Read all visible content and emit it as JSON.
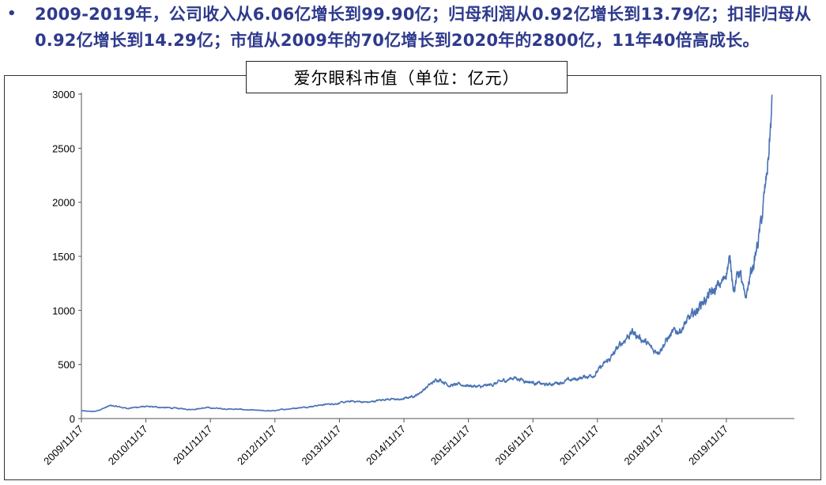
{
  "bullet": {
    "symbol": "•",
    "text": "2009-2019年，公司收入从6.06亿增长到99.90亿；归母利润从0.92亿增长到13.79亿；扣非归母从0.92亿增长到14.29亿；市值从2009年的70亿增长到2020年的2800亿，11年40倍高成长。"
  },
  "colors": {
    "text_accent": "#2e3a8c",
    "series_line": "#4a73b5"
  },
  "chart_data": {
    "type": "line",
    "title": "爱尔眼科市值（单位：亿元）",
    "xlabel": "",
    "ylabel": "",
    "x_tick_labels": [
      "2009/11/17",
      "2010/11/17",
      "2011/11/17",
      "2012/11/17",
      "2013/11/17",
      "2014/11/17",
      "2015/11/17",
      "2016/11/17",
      "2017/11/17",
      "2018/11/17",
      "2019/11/17"
    ],
    "y_ticks": [
      0,
      500,
      1000,
      1500,
      2000,
      2500,
      3000
    ],
    "ylim": [
      0,
      3000
    ],
    "grid": false,
    "legend": "none",
    "series": [
      {
        "x": [
          "2009-11",
          "2010-02",
          "2010-05",
          "2010-08",
          "2010-11",
          "2011-02",
          "2011-05",
          "2011-08",
          "2011-11",
          "2012-02",
          "2012-05",
          "2012-08",
          "2012-11",
          "2013-02",
          "2013-05",
          "2013-08",
          "2013-11",
          "2014-02",
          "2014-05",
          "2014-08",
          "2014-11",
          "2015-02",
          "2015-04",
          "2015-06",
          "2015-08",
          "2015-11",
          "2016-02",
          "2016-05",
          "2016-08",
          "2016-11",
          "2017-02",
          "2017-05",
          "2017-08",
          "2017-11",
          "2018-02",
          "2018-05",
          "2018-06",
          "2018-08",
          "2018-10",
          "2018-11",
          "2019-01",
          "2019-03",
          "2019-05",
          "2019-07",
          "2019-09",
          "2019-11",
          "2019-12",
          "2020-01",
          "2020-02",
          "2020-03",
          "2020-04",
          "2020-05",
          "2020-06",
          "2020-07",
          "2020-08"
        ],
        "values": [
          70,
          65,
          120,
          95,
          110,
          105,
          95,
          85,
          100,
          90,
          85,
          75,
          70,
          90,
          105,
          125,
          140,
          160,
          150,
          180,
          175,
          220,
          300,
          370,
          310,
          310,
          290,
          330,
          380,
          340,
          310,
          340,
          370,
          410,
          560,
          760,
          800,
          730,
          620,
          640,
          760,
          830,
          930,
          1080,
          1160,
          1270,
          1480,
          1220,
          1380,
          1070,
          1330,
          1520,
          1800,
          2200,
          2880
        ]
      }
    ]
  }
}
